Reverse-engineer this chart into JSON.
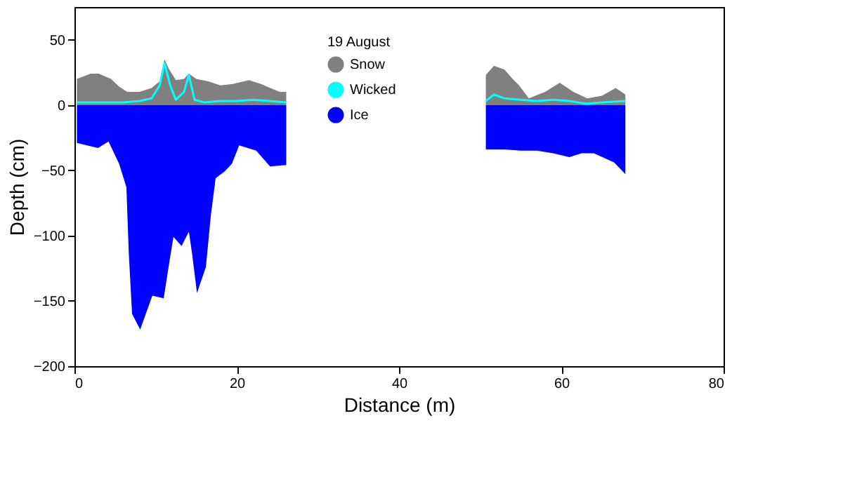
{
  "chart_data": {
    "type": "area",
    "xlabel": "Distance (m)",
    "ylabel": "Depth (cm)",
    "legend_title": "19 August",
    "legend": "top",
    "grid": false,
    "xlim": [
      0,
      80
    ],
    "xticks": [
      0,
      20,
      40,
      60,
      80
    ],
    "ylim": [
      -200,
      75
    ],
    "yticks": [
      -200,
      -150,
      -100,
      -50,
      0,
      50
    ],
    "series": [
      {
        "name": "Snow",
        "color": "#808080",
        "x": [
          0.3,
          2,
          3,
          4.5,
          5.5,
          6.5,
          8,
          9.5,
          10.5,
          11.1,
          11.6,
          12.5,
          13.5,
          14.1,
          15,
          16.5,
          18,
          19.5,
          21.5,
          23,
          24.5,
          25.3,
          26.1,
          38,
          50.7,
          51.7,
          53,
          54,
          54.8,
          56,
          58,
          59.8,
          61.5,
          63.2,
          65,
          66.7,
          67.9
        ],
        "values": [
          20,
          24,
          24,
          20,
          14,
          10,
          10,
          13,
          18,
          35,
          28,
          19,
          20,
          24,
          20,
          18,
          15,
          16,
          19,
          16,
          12,
          10,
          10,
          null,
          23,
          30,
          27,
          20,
          15,
          5,
          10,
          17,
          10,
          5,
          7,
          13,
          8
        ]
      },
      {
        "name": "Wicked",
        "type": "line",
        "color": "#00ffff",
        "x": [
          0.3,
          2,
          4,
          6,
          8,
          9.5,
          10.5,
          11.1,
          11.8,
          12.5,
          13.5,
          14.1,
          14.8,
          16,
          18,
          20,
          22,
          24,
          26.1,
          38,
          50.7,
          51.7,
          53,
          55,
          57,
          59,
          61,
          63,
          65,
          67.9
        ],
        "values": [
          2,
          2,
          2,
          2,
          3,
          5,
          15,
          32,
          15,
          4,
          10,
          23,
          4,
          2,
          3,
          3,
          4,
          3,
          2,
          null,
          3,
          8,
          5,
          4,
          3,
          4,
          3,
          1,
          2,
          3
        ]
      },
      {
        "name": "Ice",
        "color": "#0000ff",
        "x": [
          0.3,
          2.9,
          4.2,
          5.5,
          6.4,
          6.7,
          7.1,
          8.1,
          9.6,
          11,
          11.6,
          12.2,
          13.2,
          14.1,
          14.5,
          15.1,
          16.2,
          16.8,
          17.4,
          18.5,
          19.4,
          20.3,
          22.4,
          24.1,
          26.1,
          38,
          50.7,
          53,
          55,
          57,
          59,
          61,
          62.5,
          64,
          66.5,
          67.9
        ],
        "values": [
          -29,
          -33,
          -28,
          -45,
          -63,
          -114,
          -160,
          -172,
          -146,
          -148,
          -124,
          -101,
          -108,
          -97,
          -114,
          -144,
          -124,
          -85,
          -56,
          -51,
          -45,
          -31,
          -35,
          -47,
          -46,
          null,
          -34,
          -34,
          -35,
          -35,
          -37,
          -40,
          -37,
          -37,
          -44,
          -53
        ]
      }
    ]
  }
}
